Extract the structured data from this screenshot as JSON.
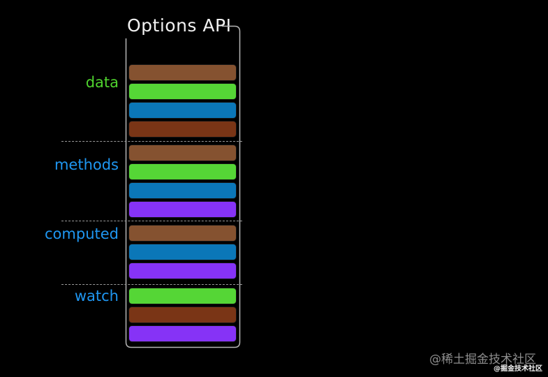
{
  "title": "Options API",
  "colors": {
    "background": "#000000",
    "title_color": "#f2f2f2",
    "outline": "#b5b5b5",
    "dashed": "#9a9a9a",
    "brown": "#855230",
    "green": "#55d636",
    "blue": "#0b77b8",
    "rust": "#7a3516",
    "purple": "#8633f6",
    "label_green": "#4fd32e",
    "label_blue": "#1f97f2"
  },
  "sections": [
    {
      "id": "data",
      "label": "data",
      "label_color_key": "label_green",
      "bars": [
        "brown",
        "green",
        "blue",
        "rust"
      ]
    },
    {
      "id": "methods",
      "label": "methods",
      "label_color_key": "label_blue",
      "bars": [
        "brown",
        "green",
        "blue",
        "purple"
      ]
    },
    {
      "id": "computed",
      "label": "computed",
      "label_color_key": "label_blue",
      "bars": [
        "brown",
        "blue",
        "purple"
      ]
    },
    {
      "id": "watch",
      "label": "watch",
      "label_color_key": "label_blue",
      "bars": [
        "green",
        "rust",
        "purple"
      ]
    }
  ],
  "watermark": {
    "primary": "@稀土掘金技术社区",
    "secondary": "@掘金技术社区"
  }
}
